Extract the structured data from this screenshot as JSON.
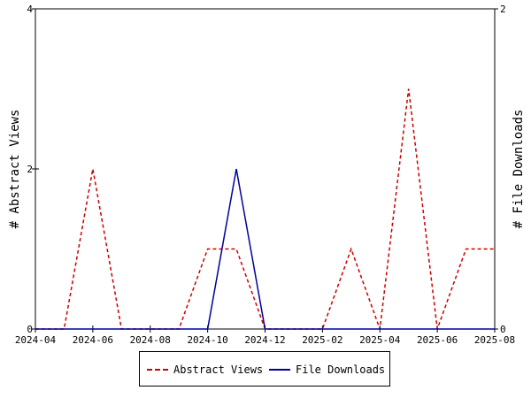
{
  "chart_data": {
    "type": "line",
    "x": [
      "2024-04",
      "2024-05",
      "2024-06",
      "2024-07",
      "2024-08",
      "2024-09",
      "2024-10",
      "2024-11",
      "2024-12",
      "2025-01",
      "2025-02",
      "2025-03",
      "2025-04",
      "2025-05",
      "2025-06",
      "2025-07",
      "2025-08"
    ],
    "x_ticks": [
      "2024-04",
      "2024-06",
      "2024-08",
      "2024-10",
      "2024-12",
      "2025-02",
      "2025-04",
      "2025-06",
      "2025-08"
    ],
    "left_axis": {
      "label": "# Abstract Views",
      "ylim": [
        0,
        4
      ],
      "ticks": [
        "0",
        "2",
        "4"
      ]
    },
    "right_axis": {
      "label": "# File Downloads",
      "ylim": [
        0,
        2
      ],
      "ticks": [
        "0",
        "2"
      ]
    },
    "series": [
      {
        "name": "Abstract Views",
        "axis": "left",
        "color": "#cc0000",
        "dash": true,
        "values": [
          0,
          0,
          2,
          0,
          0,
          0,
          1,
          1,
          0,
          0,
          0,
          1,
          0,
          3,
          0,
          1,
          1
        ]
      },
      {
        "name": "File Downloads",
        "axis": "right",
        "color": "#000099",
        "dash": false,
        "values": [
          0,
          0,
          0,
          0,
          0,
          0,
          0,
          1,
          0,
          0,
          0,
          0,
          0,
          0,
          0,
          0,
          0
        ]
      }
    ],
    "grid": false,
    "legend_position": "bottom"
  },
  "legend": {
    "items": [
      "Abstract Views",
      "File Downloads"
    ]
  }
}
